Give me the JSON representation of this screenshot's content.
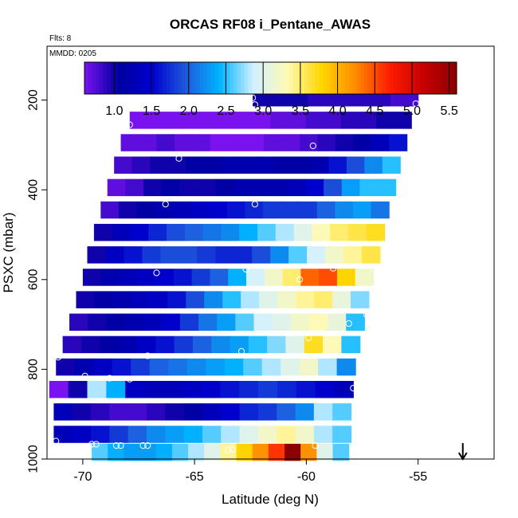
{
  "chart_data": {
    "type": "heatmap",
    "title": "ORCAS RF08 i_Pentane_AWAS",
    "flights_label": "Flts: 8",
    "date_label": "MMDD: 0205",
    "xlabel": "Latitude (deg N)",
    "ylabel": "PSXC (mbar)",
    "xlim": [
      -71.6,
      -51.6
    ],
    "ylim": [
      1000,
      80
    ],
    "x_ticks": [
      -70,
      -65,
      -60,
      -55
    ],
    "x_tick_labels": [
      "-70",
      "-65",
      "-60",
      "-55"
    ],
    "y_ticks": [
      200,
      400,
      600,
      800,
      1000
    ],
    "y_tick_labels": [
      "200",
      "400",
      "600",
      "800",
      "1000"
    ],
    "colorbar": {
      "min": 0.6,
      "max": 5.6,
      "ticks": [
        1.0,
        1.5,
        2.0,
        2.5,
        3.0,
        3.5,
        4.0,
        4.5,
        5.0,
        5.5
      ],
      "tick_labels": [
        "1.0",
        "1.5",
        "2.0",
        "2.5",
        "3.0",
        "3.5",
        "4.0",
        "4.5",
        "5.0",
        "5.5"
      ],
      "colors": [
        "#7a12f0",
        "#0000a0",
        "#0000cd",
        "#1e5adc",
        "#00b4ff",
        "#d2f0ff",
        "#fffab4",
        "#ffd700",
        "#ff8c00",
        "#ff1e00",
        "#c80000",
        "#8b0000"
      ]
    },
    "bands": [
      {
        "p": 195,
        "lat0": -62.4,
        "lat1": -55.0,
        "values": [
          1.0,
          1.0,
          1.0,
          1.0,
          0.9,
          0.9,
          0.9,
          0.9,
          0.9,
          0.9,
          0.8,
          0.8
        ]
      },
      {
        "p": 245,
        "lat0": -67.9,
        "lat1": -55.3,
        "values": [
          0.6,
          0.6,
          0.6,
          0.6,
          0.6,
          0.6,
          0.6,
          0.6,
          0.7,
          0.7,
          0.8,
          0.8,
          0.9,
          0.9,
          1.0,
          1.0
        ]
      },
      {
        "p": 295,
        "lat0": -68.3,
        "lat1": -55.5,
        "values": [
          0.7,
          0.7,
          0.8,
          0.7,
          0.7,
          0.6,
          0.6,
          0.6,
          0.7,
          0.7,
          0.8,
          0.9,
          1.0,
          1.1,
          1.3,
          1.6
        ]
      },
      {
        "p": 345,
        "lat0": -68.6,
        "lat1": -55.8,
        "values": [
          0.8,
          0.9,
          1.0,
          1.0,
          1.1,
          1.1,
          1.2,
          1.2,
          1.2,
          1.1,
          1.1,
          1.2,
          1.6,
          1.9,
          2.2,
          2.5
        ]
      },
      {
        "p": 395,
        "lat0": -68.9,
        "lat1": -56.0,
        "values": [
          0.7,
          0.8,
          1.0,
          1.1,
          1.0,
          1.0,
          1.1,
          1.2,
          1.2,
          1.2,
          1.3,
          1.5,
          1.9,
          2.3,
          2.5,
          2.5
        ]
      },
      {
        "p": 445,
        "lat0": -69.2,
        "lat1": -56.3,
        "values": [
          0.8,
          1.0,
          1.1,
          1.2,
          1.3,
          1.4,
          1.5,
          1.6,
          1.7,
          1.8,
          1.8,
          1.8,
          2.0,
          2.2,
          2.3,
          2.1
        ]
      },
      {
        "p": 495,
        "lat0": -69.5,
        "lat1": -56.5,
        "values": [
          1.0,
          1.3,
          1.5,
          1.7,
          1.9,
          2.0,
          2.1,
          2.2,
          2.4,
          2.6,
          2.8,
          3.0,
          3.3,
          3.5,
          3.6,
          3.7
        ]
      },
      {
        "p": 545,
        "lat0": -69.8,
        "lat1": -56.7,
        "values": [
          1.0,
          1.4,
          1.6,
          1.8,
          1.9,
          1.9,
          1.8,
          1.7,
          1.7,
          1.9,
          2.2,
          2.6,
          2.9,
          3.2,
          3.4,
          3.6
        ]
      },
      {
        "p": 595,
        "lat0": -70.0,
        "lat1": -57.0,
        "values": [
          1.0,
          1.2,
          1.3,
          1.4,
          1.5,
          1.6,
          1.8,
          2.0,
          2.4,
          2.9,
          3.2,
          3.5,
          4.4,
          4.5,
          3.8,
          3.2
        ]
      },
      {
        "p": 645,
        "lat0": -70.3,
        "lat1": -57.2,
        "values": [
          1.0,
          1.1,
          1.2,
          1.3,
          1.4,
          1.6,
          1.9,
          2.2,
          2.5,
          2.8,
          3.0,
          3.2,
          3.4,
          3.5,
          3.1,
          2.7
        ]
      },
      {
        "p": 695,
        "lat0": -70.6,
        "lat1": -57.4,
        "values": [
          0.9,
          1.0,
          1.1,
          1.2,
          1.3,
          1.5,
          1.8,
          2.1,
          2.3,
          2.6,
          2.9,
          3.0,
          3.2,
          3.3,
          3.1,
          2.5
        ]
      },
      {
        "p": 745,
        "lat0": -70.9,
        "lat1": -57.6,
        "values": [
          0.9,
          1.0,
          1.1,
          1.2,
          1.4,
          1.6,
          1.8,
          2.0,
          2.2,
          2.3,
          2.5,
          2.7,
          3.0,
          3.7,
          3.3,
          2.5
        ]
      },
      {
        "p": 795,
        "lat0": -71.2,
        "lat1": -57.8,
        "values": [
          1.0,
          1.2,
          1.4,
          1.6,
          1.8,
          2.0,
          2.1,
          2.2,
          2.3,
          2.4,
          2.6,
          2.8,
          3.0,
          3.2,
          2.8,
          2.2
        ]
      },
      {
        "p": 845,
        "lat0": -71.5,
        "lat1": -57.9,
        "values": [
          0.6,
          1.0,
          2.8,
          2.4,
          1.4,
          1.3,
          1.3,
          1.4,
          1.5,
          1.6,
          1.7,
          1.8,
          1.7,
          1.6,
          1.5,
          1.3
        ]
      },
      {
        "p": 895,
        "lat0": -71.3,
        "lat1": -58.0,
        "values": [
          1.3,
          1.0,
          0.9,
          0.8,
          0.8,
          0.9,
          1.0,
          1.1,
          1.3,
          1.5,
          1.7,
          1.8,
          2.0,
          2.2,
          2.8,
          2.6
        ]
      },
      {
        "p": 945,
        "lat0": -71.3,
        "lat1": -58.0,
        "values": [
          1.3,
          1.4,
          1.6,
          1.8,
          2.0,
          2.2,
          2.3,
          2.4,
          2.6,
          2.8,
          3.0,
          3.2,
          3.4,
          3.2,
          2.8,
          2.6
        ]
      },
      {
        "p": 985,
        "lat0": -69.6,
        "lat1": -58.1,
        "values": [
          2.6,
          2.4,
          2.3,
          2.3,
          2.4,
          2.6,
          2.8,
          3.0,
          3.4,
          3.8,
          4.2,
          4.6,
          5.6,
          4.2,
          3.0,
          2.6
        ]
      }
    ],
    "points": [
      {
        "lat": -62.4,
        "p": 195
      },
      {
        "lat": -62.3,
        "p": 210
      },
      {
        "lat": -55.1,
        "p": 208
      },
      {
        "lat": -67.9,
        "p": 255
      },
      {
        "lat": -59.7,
        "p": 302
      },
      {
        "lat": -65.7,
        "p": 330
      },
      {
        "lat": -66.3,
        "p": 432
      },
      {
        "lat": -62.3,
        "p": 432
      },
      {
        "lat": -66.7,
        "p": 585
      },
      {
        "lat": -62.7,
        "p": 577
      },
      {
        "lat": -58.8,
        "p": 575
      },
      {
        "lat": -60.3,
        "p": 600
      },
      {
        "lat": -57.3,
        "p": 678
      },
      {
        "lat": -58.1,
        "p": 698
      },
      {
        "lat": -59.9,
        "p": 730
      },
      {
        "lat": -71.1,
        "p": 773
      },
      {
        "lat": -67.1,
        "p": 770
      },
      {
        "lat": -62.9,
        "p": 760
      },
      {
        "lat": -71.6,
        "p": 815
      },
      {
        "lat": -69.9,
        "p": 815
      },
      {
        "lat": -68.8,
        "p": 820
      },
      {
        "lat": -67.9,
        "p": 822
      },
      {
        "lat": -57.9,
        "p": 842
      },
      {
        "lat": -71.2,
        "p": 960
      },
      {
        "lat": -69.6,
        "p": 967
      },
      {
        "lat": -69.4,
        "p": 967
      },
      {
        "lat": -68.5,
        "p": 970
      },
      {
        "lat": -68.3,
        "p": 970
      },
      {
        "lat": -67.3,
        "p": 970
      },
      {
        "lat": -67.1,
        "p": 970
      },
      {
        "lat": -63.5,
        "p": 980
      },
      {
        "lat": -63.3,
        "p": 978
      },
      {
        "lat": -59.6,
        "p": 970
      },
      {
        "lat": -57.8,
        "p": 975
      },
      {
        "lat": -57.7,
        "p": 978
      }
    ],
    "marker_arrow_lat": -53.0
  }
}
